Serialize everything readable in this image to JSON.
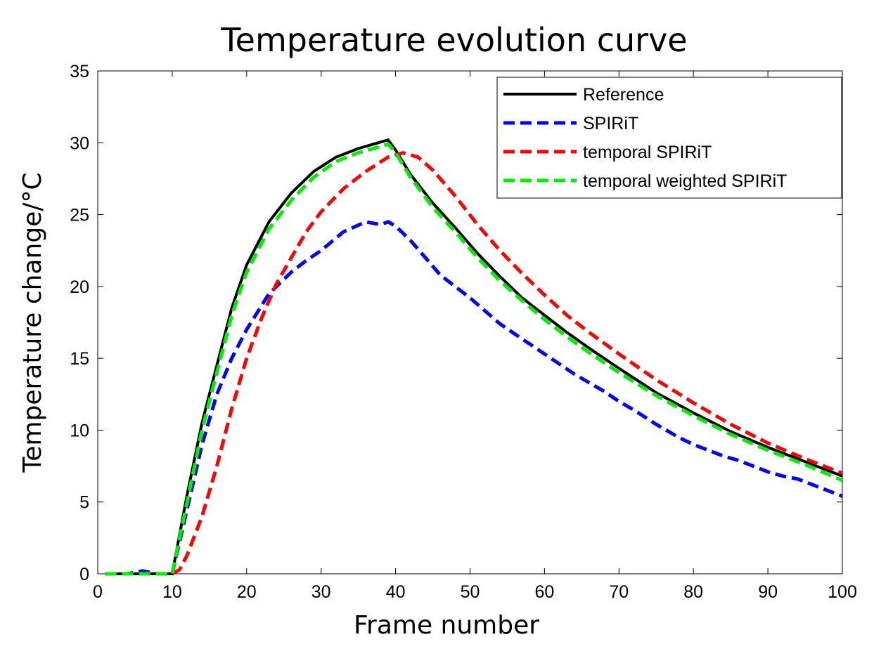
{
  "chart_data": {
    "type": "line",
    "title": "Temperature evolution curve",
    "xlabel": "Frame number",
    "ylabel": "Temperature change/°C",
    "xlim": [
      0,
      100
    ],
    "ylim": [
      0,
      35
    ],
    "xticks": [
      0,
      10,
      20,
      30,
      40,
      50,
      60,
      70,
      80,
      90,
      100
    ],
    "yticks": [
      0,
      5,
      10,
      15,
      20,
      25,
      30,
      35
    ],
    "grid": false,
    "legend_position": "top-right",
    "series": [
      {
        "name": "Reference",
        "color": "#000000",
        "style": "solid",
        "x": [
          1,
          5,
          8,
          10,
          12,
          14,
          16,
          18,
          20,
          23,
          26,
          29,
          32,
          35,
          37,
          39,
          40,
          42,
          45,
          48,
          51,
          54,
          57,
          60,
          63,
          66,
          70,
          75,
          80,
          85,
          90,
          95,
          100
        ],
        "y": [
          0,
          0,
          0,
          0,
          5.5,
          10.5,
          14.5,
          18.5,
          21.5,
          24.5,
          26.5,
          28,
          29,
          29.6,
          29.9,
          30.2,
          29.5,
          27.8,
          25.8,
          24.1,
          22.3,
          20.7,
          19.2,
          18,
          16.8,
          15.7,
          14.3,
          12.6,
          11.2,
          9.9,
          8.8,
          7.8,
          6.8
        ]
      },
      {
        "name": "SPIRiT",
        "color": "#0000ff",
        "style": "dashed",
        "x": [
          1,
          4,
          6,
          8,
          10,
          12,
          14,
          16,
          18,
          20,
          23,
          26,
          28,
          30,
          33,
          36,
          38,
          39,
          40,
          42,
          44,
          46,
          48,
          50,
          52,
          54,
          56,
          58,
          60,
          62,
          64,
          66,
          68,
          70,
          72,
          75,
          78,
          80,
          82,
          84,
          86,
          88,
          90,
          92,
          94,
          96,
          98,
          100
        ],
        "y": [
          0,
          0,
          0.2,
          0,
          0,
          4.5,
          9,
          12.5,
          15,
          17,
          19.5,
          21,
          21.8,
          22.5,
          23.8,
          24.5,
          24.3,
          24.5,
          24.2,
          23.2,
          22,
          20.8,
          20,
          19.2,
          18.3,
          17.4,
          16.7,
          16,
          15.3,
          14.6,
          13.9,
          13.3,
          12.7,
          12,
          11.4,
          10.4,
          9.5,
          9.0,
          8.6,
          8.2,
          7.9,
          7.5,
          7.1,
          6.8,
          6.6,
          6.2,
          5.8,
          5.4
        ]
      },
      {
        "name": "temporal SPIRiT",
        "color": "#ff0000",
        "style": "dashed",
        "x": [
          1,
          5,
          8,
          10,
          11,
          12,
          14,
          16,
          18,
          20,
          22,
          24,
          26,
          28,
          30,
          33,
          36,
          39,
          41,
          43,
          45,
          48,
          51,
          54,
          57,
          60,
          63,
          66,
          70,
          75,
          80,
          85,
          90,
          95,
          100
        ],
        "y": [
          0,
          0,
          0,
          0,
          0.3,
          1.3,
          4,
          7.5,
          11.5,
          15,
          17.8,
          20.2,
          22,
          23.8,
          25.2,
          26.8,
          28,
          29,
          29.3,
          29,
          28.1,
          26.3,
          24.3,
          22.5,
          20.9,
          19.4,
          18,
          16.8,
          15.3,
          13.5,
          11.9,
          10.4,
          9.1,
          8.0,
          7.0
        ]
      },
      {
        "name": "temporal weighted SPIRiT",
        "color": "#00ee00",
        "style": "dashed",
        "x": [
          1,
          5,
          8,
          10,
          12,
          14,
          16,
          18,
          20,
          23,
          26,
          29,
          32,
          35,
          37,
          39,
          40,
          42,
          45,
          48,
          51,
          54,
          57,
          60,
          63,
          66,
          70,
          75,
          80,
          85,
          90,
          95,
          100
        ],
        "y": [
          0,
          0,
          0,
          0,
          5,
          10,
          14,
          18,
          21,
          24,
          26,
          27.6,
          28.7,
          29.3,
          29.6,
          29.9,
          29.3,
          27.6,
          25.5,
          23.8,
          22,
          20.4,
          19,
          17.7,
          16.5,
          15.4,
          14,
          12.4,
          11,
          9.7,
          8.6,
          7.6,
          6.5
        ]
      }
    ]
  }
}
